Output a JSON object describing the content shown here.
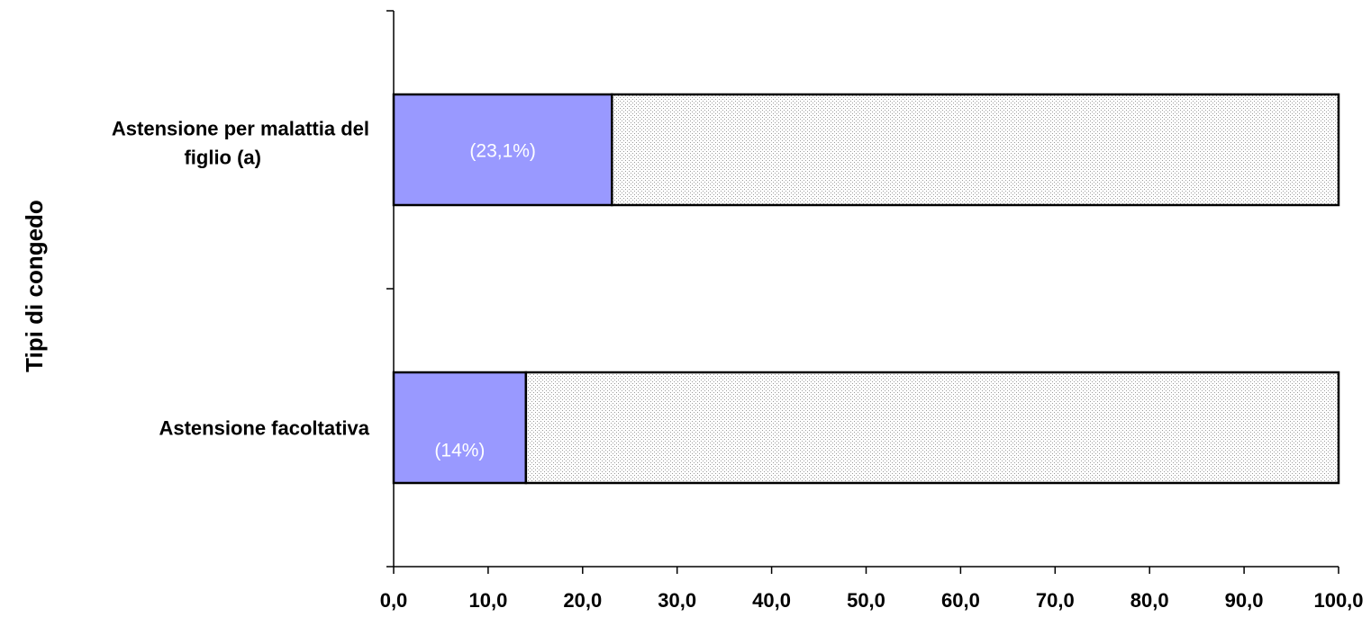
{
  "chart_data": {
    "type": "bar",
    "orientation": "horizontal",
    "stacked": true,
    "ylabel": "Tipi di congedo",
    "xlabel": "",
    "title": "",
    "categories": [
      [
        "Astensione per malattia del",
        "figlio (a)"
      ],
      [
        "Astensione facoltativa"
      ]
    ],
    "series": [
      {
        "values": [
          23.1,
          14.0
        ],
        "color": "#9999ff",
        "data_labels": [
          "(23,1%)",
          "(14%)"
        ]
      },
      {
        "values": [
          76.9,
          86.0
        ],
        "color": "#ffffff",
        "pattern": "dotted"
      }
    ],
    "xlim": [
      0,
      100
    ],
    "xticks": [
      "0,0",
      "10,0",
      "20,0",
      "30,0",
      "40,0",
      "50,0",
      "60,0",
      "70,0",
      "80,0",
      "90,0",
      "100,0"
    ],
    "grid": false,
    "legend": "none"
  }
}
